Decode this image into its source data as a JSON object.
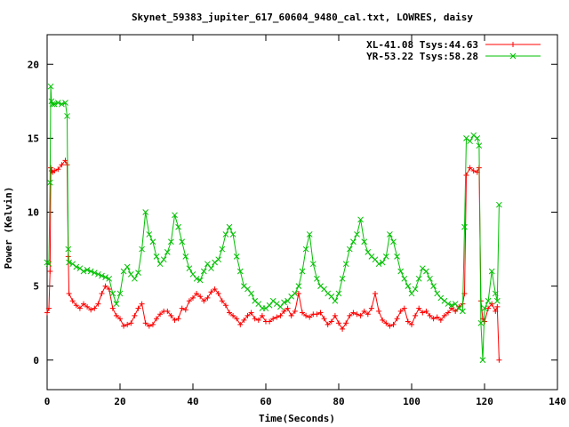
{
  "chart_data": {
    "type": "line",
    "title": "Skynet_59383_jupiter_617_60604_9480_cal.txt, LOWRES, daisy",
    "xlabel": "Time(Seconds)",
    "ylabel": "Power (Kelvin)",
    "xlim": [
      0,
      140
    ],
    "ylim": [
      -2,
      22
    ],
    "xticks": [
      0,
      20,
      40,
      60,
      80,
      100,
      120,
      140
    ],
    "yticks": [
      0,
      5,
      10,
      15,
      20
    ],
    "legend_position": "top-right",
    "grid": false,
    "series": [
      {
        "name": "XL-41.08 Tsys:44.63",
        "color": "#ff0000",
        "marker": "plus",
        "x": [
          0,
          0.5,
          0.8,
          1.0,
          1.2,
          1.5,
          2,
          3,
          4,
          5,
          5.5,
          5.8,
          6,
          7,
          8,
          9,
          10,
          11,
          12,
          13,
          14,
          15,
          16,
          17,
          18,
          19,
          20,
          21,
          22,
          23,
          24,
          25,
          26,
          27,
          28,
          29,
          30,
          31,
          32,
          33,
          34,
          35,
          36,
          37,
          38,
          39,
          40,
          41,
          42,
          43,
          44,
          45,
          46,
          47,
          48,
          49,
          50,
          51,
          52,
          53,
          54,
          55,
          56,
          57,
          58,
          59,
          60,
          61,
          62,
          63,
          64,
          65,
          66,
          67,
          68,
          69,
          70,
          71,
          72,
          73,
          74,
          75,
          76,
          77,
          78,
          79,
          80,
          81,
          82,
          83,
          84,
          85,
          86,
          87,
          88,
          89,
          90,
          91,
          92,
          93,
          94,
          95,
          96,
          97,
          98,
          99,
          100,
          101,
          102,
          103,
          104,
          105,
          106,
          107,
          108,
          109,
          110,
          111,
          112,
          113,
          114,
          114.5,
          115,
          116,
          117,
          118,
          118.5,
          119,
          119.5,
          120,
          121,
          122,
          123,
          123.5,
          124
        ],
        "y": [
          3.2,
          3.5,
          6.0,
          13.0,
          12.8,
          12.7,
          12.8,
          12.9,
          13.2,
          13.5,
          13.2,
          7.0,
          4.5,
          4.0,
          3.7,
          3.5,
          3.8,
          3.6,
          3.4,
          3.5,
          3.8,
          4.5,
          5.0,
          4.8,
          3.5,
          3.0,
          2.8,
          2.3,
          2.4,
          2.5,
          3.0,
          3.5,
          3.8,
          2.5,
          2.3,
          2.4,
          2.8,
          3.1,
          3.3,
          3.3,
          3.0,
          2.7,
          2.8,
          3.5,
          3.4,
          4.0,
          4.2,
          4.5,
          4.3,
          4.0,
          4.2,
          4.6,
          4.8,
          4.5,
          4.0,
          3.7,
          3.2,
          3.0,
          2.8,
          2.4,
          2.7,
          3.0,
          3.2,
          2.8,
          2.7,
          3.0,
          2.6,
          2.6,
          2.8,
          2.9,
          3.0,
          3.3,
          3.5,
          3.0,
          3.3,
          4.5,
          3.2,
          3.0,
          2.9,
          3.1,
          3.1,
          3.2,
          2.8,
          2.4,
          2.6,
          3.0,
          2.5,
          2.1,
          2.5,
          3.0,
          3.2,
          3.1,
          3.0,
          3.3,
          3.1,
          3.5,
          4.5,
          3.3,
          2.7,
          2.5,
          2.3,
          2.4,
          2.8,
          3.3,
          3.5,
          2.6,
          2.4,
          3.0,
          3.5,
          3.2,
          3.3,
          3.0,
          2.8,
          2.9,
          2.7,
          3.0,
          3.2,
          3.5,
          3.3,
          3.6,
          3.8,
          4.5,
          12.5,
          13.0,
          12.8,
          12.7,
          13.0,
          4.0,
          2.8,
          2.6,
          3.5,
          3.8,
          3.3,
          3.6,
          0.0
        ]
      },
      {
        "name": "YR-53.22 Tsys:58.28",
        "color": "#00c000",
        "marker": "cross",
        "x": [
          0,
          0.5,
          0.8,
          1.0,
          1.2,
          1.5,
          2,
          3,
          4,
          5,
          5.5,
          5.8,
          6,
          7,
          8,
          9,
          10,
          11,
          12,
          13,
          14,
          15,
          16,
          17,
          18,
          19,
          20,
          21,
          22,
          23,
          24,
          25,
          26,
          27,
          28,
          29,
          30,
          31,
          32,
          33,
          34,
          35,
          36,
          37,
          38,
          39,
          40,
          41,
          42,
          43,
          44,
          45,
          46,
          47,
          48,
          49,
          50,
          51,
          52,
          53,
          54,
          55,
          56,
          57,
          58,
          59,
          60,
          61,
          62,
          63,
          64,
          65,
          66,
          67,
          68,
          69,
          70,
          71,
          72,
          73,
          74,
          75,
          76,
          77,
          78,
          79,
          80,
          81,
          82,
          83,
          84,
          85,
          86,
          87,
          88,
          89,
          90,
          91,
          92,
          93,
          94,
          95,
          96,
          97,
          98,
          99,
          100,
          101,
          102,
          103,
          104,
          105,
          106,
          107,
          108,
          109,
          110,
          111,
          112,
          113,
          114,
          114.5,
          115,
          116,
          117,
          118,
          118.5,
          119,
          119.5,
          120,
          121,
          122,
          123,
          123.5,
          124
        ],
        "y": [
          6.6,
          6.5,
          12.0,
          18.5,
          17.5,
          17.3,
          17.3,
          17.4,
          17.3,
          17.4,
          16.5,
          7.5,
          6.6,
          6.5,
          6.3,
          6.2,
          6.0,
          6.1,
          6.0,
          5.9,
          5.8,
          5.7,
          5.6,
          5.5,
          4.5,
          3.8,
          4.5,
          6.0,
          6.3,
          5.8,
          5.5,
          5.9,
          7.5,
          10.0,
          8.5,
          8.0,
          7.0,
          6.5,
          6.8,
          7.3,
          8.0,
          9.8,
          9.0,
          8.0,
          7.0,
          6.2,
          5.8,
          5.5,
          5.4,
          6.0,
          6.5,
          6.2,
          6.6,
          6.8,
          7.5,
          8.5,
          9.0,
          8.5,
          7.0,
          6.0,
          5.0,
          4.8,
          4.5,
          4.0,
          3.8,
          3.5,
          3.5,
          3.7,
          4.0,
          3.8,
          3.6,
          3.9,
          4.0,
          4.3,
          4.5,
          5.0,
          6.0,
          7.5,
          8.5,
          6.5,
          5.5,
          5.0,
          4.8,
          4.5,
          4.3,
          4.0,
          4.5,
          5.5,
          6.5,
          7.5,
          8.0,
          8.5,
          9.5,
          8.0,
          7.3,
          7.0,
          6.8,
          6.5,
          6.6,
          7.0,
          8.5,
          8.0,
          7.0,
          6.0,
          5.5,
          5.0,
          4.5,
          4.8,
          5.5,
          6.2,
          6.0,
          5.5,
          5.0,
          4.5,
          4.2,
          4.0,
          3.8,
          3.7,
          3.8,
          3.5,
          3.3,
          9.0,
          15.0,
          14.8,
          15.2,
          15.0,
          14.5,
          2.5,
          0.0,
          3.5,
          4.0,
          6.0,
          4.5,
          4.0,
          10.5
        ]
      }
    ]
  }
}
